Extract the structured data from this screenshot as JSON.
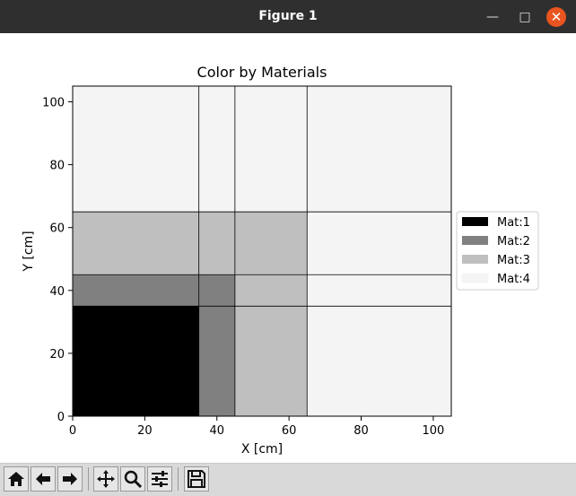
{
  "window": {
    "title": "Figure 1"
  },
  "toolbar": {
    "buttons": [
      "home-icon",
      "back-arrow-icon",
      "forward-arrow-icon",
      "pan-icon",
      "zoom-icon",
      "configure-subplots-icon",
      "save-icon"
    ]
  },
  "chart_data": {
    "type": "heatmap",
    "title": "Color by Materials",
    "xlabel": "X [cm]",
    "ylabel": "Y [cm]",
    "xlim": [
      0,
      105
    ],
    "ylim": [
      0,
      105
    ],
    "xticks": [
      0,
      20,
      40,
      60,
      80,
      100
    ],
    "yticks": [
      0,
      20,
      40,
      60,
      80,
      100
    ],
    "x_edges": [
      0,
      35,
      45,
      65,
      105
    ],
    "y_edges": [
      0,
      35,
      45,
      65,
      105
    ],
    "materials": [
      [
        1,
        2,
        3,
        4
      ],
      [
        2,
        2,
        3,
        4
      ],
      [
        3,
        3,
        3,
        4
      ],
      [
        4,
        4,
        4,
        4
      ]
    ],
    "extra_lines": [
      {
        "orient": "v",
        "at": 45,
        "from": 65,
        "to": 105
      }
    ],
    "legend_position": "right",
    "legend": [
      {
        "label": "Mat:1",
        "color": "#000000"
      },
      {
        "label": "Mat:2",
        "color": "#808080"
      },
      {
        "label": "Mat:3",
        "color": "#bfbfbf"
      },
      {
        "label": "Mat:4",
        "color": "#f4f4f4"
      }
    ]
  }
}
